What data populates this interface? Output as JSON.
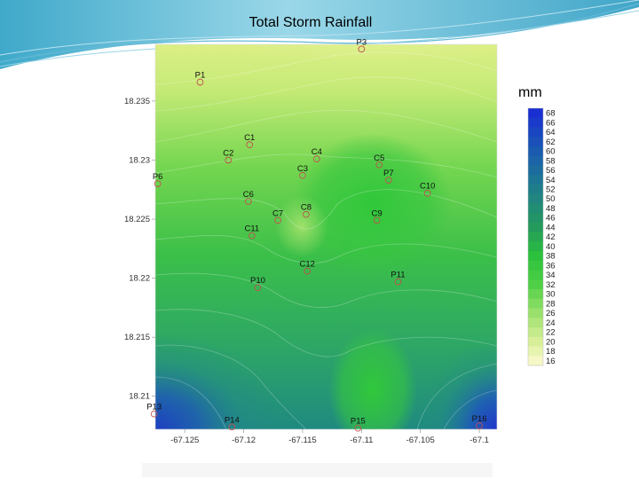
{
  "slide": {
    "title": "Total Storm Rainfall",
    "unit": "mm"
  },
  "colors": {
    "accent_swoosh": "#3aa8c8",
    "low": "#f3f7b9",
    "mid": "#34c93b",
    "high": "#1f49c8",
    "marker": "#c0504d"
  },
  "chart_data": {
    "type": "contour",
    "x_ticks": [
      "-67.125",
      "-67.12",
      "-67.115",
      "-67.11",
      "-67.105",
      "-67.1"
    ],
    "y_ticks": [
      "18.235",
      "18.23",
      "18.225",
      "18.22",
      "18.215",
      "18.21"
    ],
    "x_values": [
      -67.125,
      -67.12,
      -67.115,
      -67.11,
      -67.105,
      -67.1
    ],
    "y_values": [
      18.235,
      18.23,
      18.225,
      18.22,
      18.215,
      18.21
    ],
    "xlim": [
      -67.1275,
      -67.0985
    ],
    "ylim": [
      18.2072,
      18.2398
    ],
    "legend_levels": [
      "68",
      "66",
      "64",
      "62",
      "60",
      "58",
      "56",
      "54",
      "52",
      "50",
      "48",
      "46",
      "44",
      "42",
      "40",
      "38",
      "36",
      "34",
      "32",
      "30",
      "28",
      "26",
      "24",
      "22",
      "20",
      "18",
      "16"
    ],
    "stations": [
      {
        "name": "P1",
        "x": -67.1237,
        "y": 18.2366
      },
      {
        "name": "P3",
        "x": -67.11,
        "y": 18.2394
      },
      {
        "name": "C1",
        "x": -67.1195,
        "y": 18.2313
      },
      {
        "name": "C2",
        "x": -67.1213,
        "y": 18.23
      },
      {
        "name": "C4",
        "x": -67.1138,
        "y": 18.2301
      },
      {
        "name": "C5",
        "x": -67.1085,
        "y": 18.2296
      },
      {
        "name": "P6",
        "x": -67.1273,
        "y": 18.228
      },
      {
        "name": "C3",
        "x": -67.115,
        "y": 18.2287
      },
      {
        "name": "P7",
        "x": -67.1077,
        "y": 18.2283
      },
      {
        "name": "C10",
        "x": -67.1044,
        "y": 18.2272
      },
      {
        "name": "C6",
        "x": -67.1196,
        "y": 18.2265
      },
      {
        "name": "C8",
        "x": -67.1147,
        "y": 18.2254
      },
      {
        "name": "C7",
        "x": -67.1171,
        "y": 18.2249
      },
      {
        "name": "C9",
        "x": -67.1087,
        "y": 18.2249
      },
      {
        "name": "C11",
        "x": -67.1193,
        "y": 18.2236
      },
      {
        "name": "C12",
        "x": -67.1146,
        "y": 18.2206
      },
      {
        "name": "P11",
        "x": -67.1069,
        "y": 18.2197
      },
      {
        "name": "P10",
        "x": -67.1188,
        "y": 18.2192
      },
      {
        "name": "P13",
        "x": -67.1276,
        "y": 18.2085
      },
      {
        "name": "P14",
        "x": -67.121,
        "y": 18.2074
      },
      {
        "name": "P15",
        "x": -67.1103,
        "y": 18.2073
      },
      {
        "name": "P16",
        "x": -67.1,
        "y": 18.2075
      }
    ]
  }
}
